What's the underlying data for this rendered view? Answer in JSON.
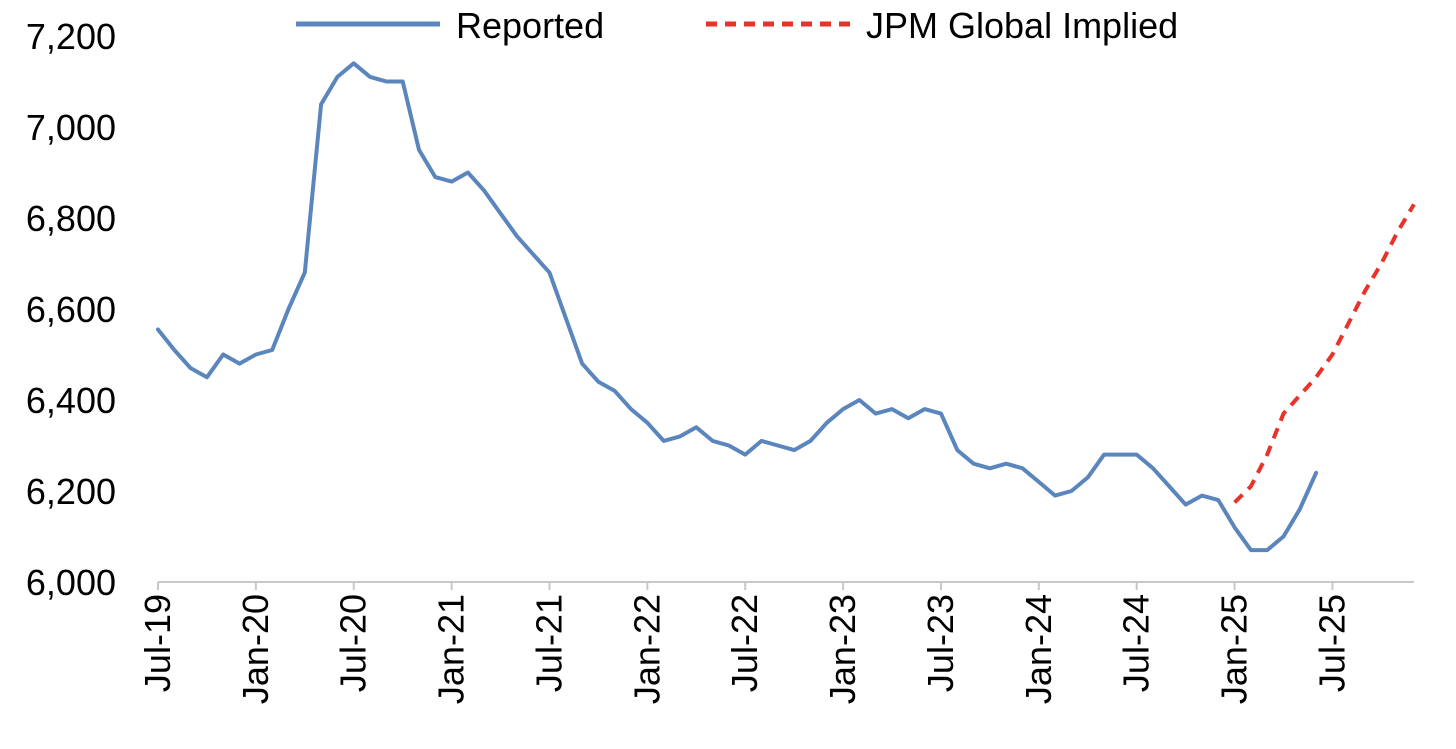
{
  "chart_data": {
    "type": "line",
    "title": "",
    "xlabel": "",
    "ylabel": "",
    "ylim": [
      6000,
      7200
    ],
    "y_ticks": [
      6000,
      6200,
      6400,
      6600,
      6800,
      7000,
      7200
    ],
    "y_tick_labels": [
      "6,000",
      "6,200",
      "6,400",
      "6,600",
      "6,800",
      "7,000",
      "7,200"
    ],
    "x_range": [
      "2019-07",
      "2025-12"
    ],
    "x_ticks": [
      "2019-07",
      "2020-01",
      "2020-07",
      "2021-01",
      "2021-07",
      "2022-01",
      "2022-07",
      "2023-01",
      "2023-07",
      "2024-01",
      "2024-07",
      "2025-01",
      "2025-07"
    ],
    "x_tick_labels": [
      "Jul-19",
      "Jan-20",
      "Jul-20",
      "Jan-21",
      "Jul-21",
      "Jan-22",
      "Jul-22",
      "Jan-23",
      "Jul-23",
      "Jan-24",
      "Jul-24",
      "Jan-25",
      "Jul-25"
    ],
    "grid": false,
    "legend_position": "top",
    "series": [
      {
        "name": "Reported",
        "color": "#5B86BD",
        "style": "solid",
        "x": [
          "2019-07",
          "2019-08",
          "2019-09",
          "2019-10",
          "2019-11",
          "2019-12",
          "2020-01",
          "2020-02",
          "2020-03",
          "2020-04",
          "2020-05",
          "2020-06",
          "2020-07",
          "2020-08",
          "2020-09",
          "2020-10",
          "2020-11",
          "2020-12",
          "2021-01",
          "2021-02",
          "2021-03",
          "2021-04",
          "2021-05",
          "2021-06",
          "2021-07",
          "2021-08",
          "2021-09",
          "2021-10",
          "2021-11",
          "2021-12",
          "2022-01",
          "2022-02",
          "2022-03",
          "2022-04",
          "2022-05",
          "2022-06",
          "2022-07",
          "2022-08",
          "2022-09",
          "2022-10",
          "2022-11",
          "2022-12",
          "2023-01",
          "2023-02",
          "2023-03",
          "2023-04",
          "2023-05",
          "2023-06",
          "2023-07",
          "2023-08",
          "2023-09",
          "2023-10",
          "2023-11",
          "2023-12",
          "2024-01",
          "2024-02",
          "2024-03",
          "2024-04",
          "2024-05",
          "2024-06",
          "2024-07",
          "2024-08",
          "2024-09",
          "2024-10",
          "2024-11",
          "2024-12",
          "2025-01",
          "2025-02",
          "2025-03",
          "2025-04",
          "2025-05",
          "2025-06"
        ],
        "values": [
          6555,
          6510,
          6470,
          6450,
          6500,
          6480,
          6500,
          6510,
          6600,
          6680,
          7050,
          7110,
          7140,
          7110,
          7100,
          7100,
          6950,
          6890,
          6880,
          6900,
          6860,
          6810,
          6760,
          6720,
          6680,
          6580,
          6480,
          6440,
          6420,
          6380,
          6350,
          6310,
          6320,
          6340,
          6310,
          6300,
          6280,
          6310,
          6300,
          6290,
          6310,
          6350,
          6380,
          6400,
          6370,
          6380,
          6360,
          6380,
          6370,
          6290,
          6260,
          6250,
          6260,
          6250,
          6220,
          6190,
          6200,
          6230,
          6280,
          6280,
          6280,
          6250,
          6210,
          6170,
          6190,
          6180,
          6120,
          6070,
          6070,
          6100,
          6160,
          6240
        ]
      },
      {
        "name": "JPM Global Implied",
        "color": "#E8332A",
        "style": "dashed",
        "x": [
          "2025-01",
          "2025-02",
          "2025-03",
          "2025-04",
          "2025-05",
          "2025-06",
          "2025-07",
          "2025-08",
          "2025-09",
          "2025-10",
          "2025-11",
          "2025-12"
        ],
        "values": [
          6175,
          6210,
          6280,
          6370,
          6410,
          6450,
          6500,
          6570,
          6640,
          6700,
          6770,
          6830
        ]
      }
    ]
  }
}
